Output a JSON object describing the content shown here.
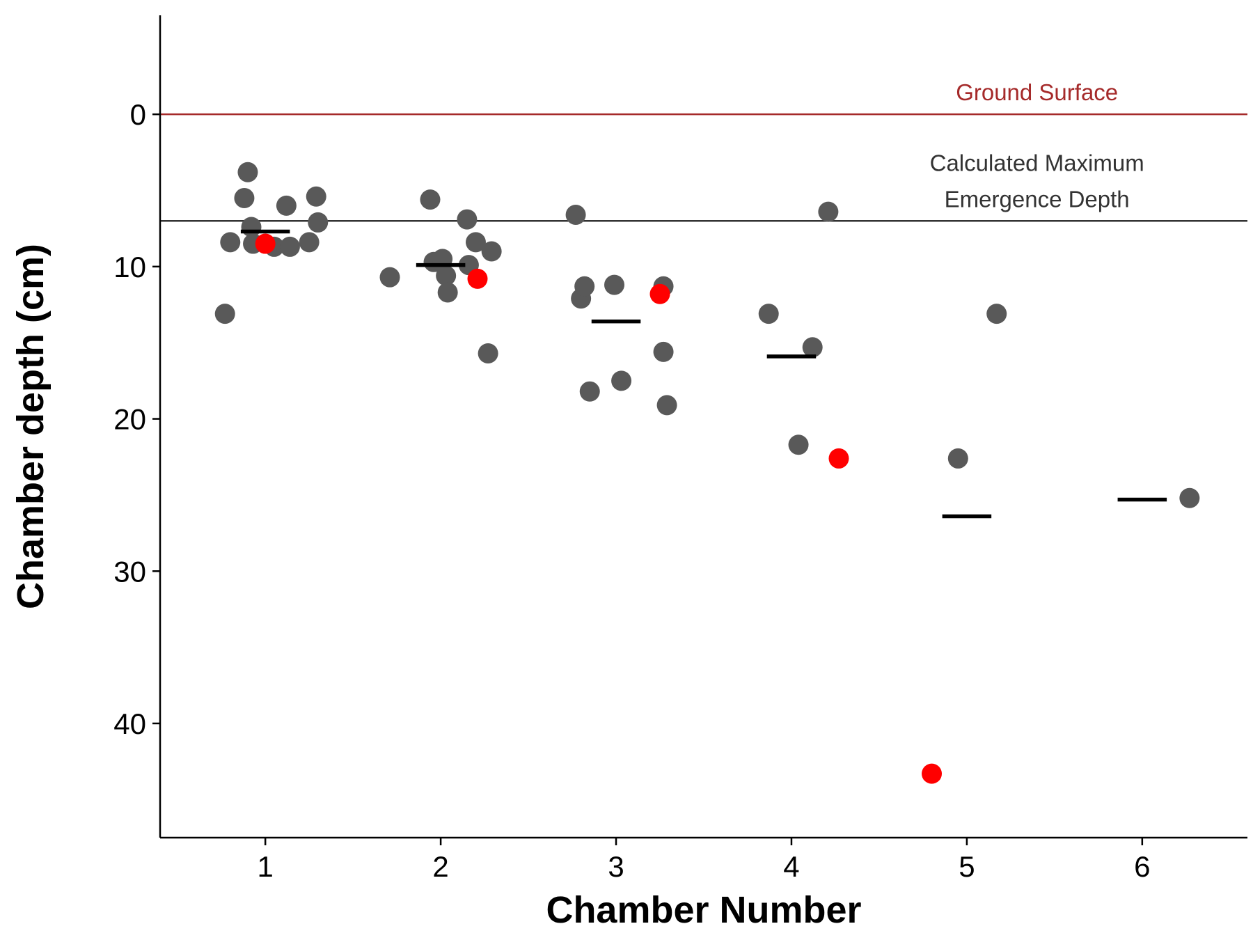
{
  "chart_data": {
    "type": "scatter",
    "title": "",
    "xlabel": "Chamber Number",
    "ylabel": "Chamber depth (cm)",
    "x_ticks": [
      "1",
      "2",
      "3",
      "4",
      "5",
      "6"
    ],
    "y_ticks": [
      "0",
      "10",
      "20",
      "30",
      "40"
    ],
    "xlim": [
      0.4,
      6.6
    ],
    "ylim": [
      -6.5,
      47.5
    ],
    "y_reversed": true,
    "grid": false,
    "legend": "none",
    "colors": {
      "points": "#595959",
      "highlight": "#ff0000",
      "mean": "#000000",
      "ground": "#a52a2a",
      "emergence": "#333333"
    },
    "series": [
      {
        "role": "observations",
        "color": "#595959",
        "points": [
          [
            0.77,
            13.1
          ],
          [
            0.8,
            8.4
          ],
          [
            0.88,
            5.5
          ],
          [
            0.9,
            3.8
          ],
          [
            0.92,
            7.4
          ],
          [
            0.93,
            8.5
          ],
          [
            1.05,
            8.7
          ],
          [
            1.12,
            6.0
          ],
          [
            1.14,
            8.7
          ],
          [
            1.25,
            8.4
          ],
          [
            1.29,
            5.4
          ],
          [
            1.3,
            7.1
          ],
          [
            1.71,
            10.7
          ],
          [
            1.94,
            5.6
          ],
          [
            1.96,
            9.7
          ],
          [
            2.01,
            9.5
          ],
          [
            2.03,
            10.6
          ],
          [
            2.04,
            11.7
          ],
          [
            2.15,
            6.9
          ],
          [
            2.16,
            9.9
          ],
          [
            2.2,
            8.4
          ],
          [
            2.27,
            15.7
          ],
          [
            2.29,
            9.0
          ],
          [
            2.77,
            6.6
          ],
          [
            2.8,
            12.1
          ],
          [
            2.82,
            11.3
          ],
          [
            2.85,
            18.2
          ],
          [
            2.99,
            11.2
          ],
          [
            3.03,
            17.5
          ],
          [
            3.27,
            11.3
          ],
          [
            3.27,
            15.6
          ],
          [
            3.29,
            19.1
          ],
          [
            3.87,
            13.1
          ],
          [
            4.04,
            21.7
          ],
          [
            4.12,
            15.3
          ],
          [
            4.21,
            6.4
          ],
          [
            4.95,
            22.6
          ],
          [
            5.17,
            13.1
          ],
          [
            6.27,
            25.2
          ]
        ]
      },
      {
        "role": "highlighted",
        "color": "#ff0000",
        "points": [
          [
            1.0,
            8.5
          ],
          [
            2.21,
            10.8
          ],
          [
            3.25,
            11.8
          ],
          [
            4.27,
            22.6
          ],
          [
            4.8,
            43.3
          ]
        ]
      }
    ],
    "means": [
      {
        "x": 1,
        "y": 7.7
      },
      {
        "x": 2,
        "y": 9.9
      },
      {
        "x": 3,
        "y": 13.6
      },
      {
        "x": 4,
        "y": 15.9
      },
      {
        "x": 5,
        "y": 26.4
      },
      {
        "x": 6,
        "y": 25.3
      }
    ],
    "reference_lines": [
      {
        "y": 0,
        "color": "#a52a2a",
        "label_lines": [
          "Ground Surface"
        ],
        "label_x": 5.4
      },
      {
        "y": 7,
        "color": "#333333",
        "label_lines": [
          "Calculated Maximum",
          "Emergence Depth"
        ],
        "label_x": 5.4
      }
    ]
  }
}
